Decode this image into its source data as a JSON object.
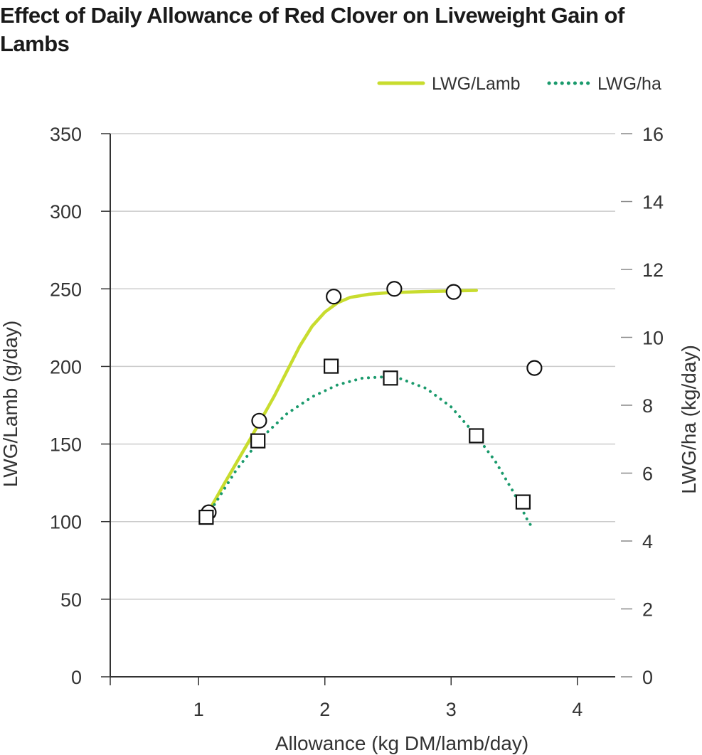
{
  "chart_data": {
    "type": "line",
    "title": "Effect of Daily Allowance of Red Clover on Liveweight Gain of Lambs",
    "xlabel": "Allowance (kg DM/lamb/day)",
    "ylabel_left": "LWG/Lamb (g/day)",
    "ylabel_right": "LWG/ha (kg/day)",
    "xlim": [
      0.3,
      4.3
    ],
    "ylim_left": [
      0,
      350
    ],
    "ylim_right": [
      0,
      16
    ],
    "x_ticks": [
      "1",
      "2",
      "3",
      "4"
    ],
    "y_ticks_left": [
      "0",
      "50",
      "100",
      "150",
      "200",
      "250",
      "300",
      "350"
    ],
    "y_ticks_right": [
      "0",
      "2",
      "4",
      "6",
      "8",
      "10",
      "12",
      "14",
      "16"
    ],
    "grid": "horizontal",
    "legend_position": "top-right",
    "colors": {
      "lwg_lamb": "#c8dc2e",
      "lwg_ha": "#1a9a6c",
      "grid": "#cccccc",
      "axis": "#333333"
    },
    "series": [
      {
        "name": "LWG/Lamb",
        "axis": "left",
        "style": "solid",
        "marker": "circle",
        "points": [
          [
            1.08,
            106
          ],
          [
            1.48,
            165
          ],
          [
            2.07,
            245
          ],
          [
            2.55,
            250
          ],
          [
            3.02,
            248
          ],
          [
            3.66,
            199
          ]
        ],
        "fit": [
          [
            1.04,
            101
          ],
          [
            1.2,
            124
          ],
          [
            1.4,
            152
          ],
          [
            1.6,
            181
          ],
          [
            1.8,
            213
          ],
          [
            1.9,
            226
          ],
          [
            2.0,
            235
          ],
          [
            2.1,
            241
          ],
          [
            2.2,
            244.5
          ],
          [
            2.35,
            246.5
          ],
          [
            2.5,
            247.5
          ],
          [
            2.8,
            248.3
          ],
          [
            3.2,
            249
          ]
        ]
      },
      {
        "name": "LWG/ha",
        "axis": "right",
        "style": "dotted",
        "marker": "square",
        "points": [
          [
            1.06,
            4.7
          ],
          [
            1.47,
            6.95
          ],
          [
            2.05,
            9.15
          ],
          [
            2.52,
            8.8
          ],
          [
            3.2,
            7.1
          ],
          [
            3.57,
            5.15
          ]
        ],
        "fit": [
          [
            1.07,
            4.75
          ],
          [
            1.3,
            6.1
          ],
          [
            1.5,
            7.05
          ],
          [
            1.7,
            7.75
          ],
          [
            1.9,
            8.25
          ],
          [
            2.1,
            8.6
          ],
          [
            2.3,
            8.8
          ],
          [
            2.45,
            8.83
          ],
          [
            2.6,
            8.78
          ],
          [
            2.8,
            8.5
          ],
          [
            3.0,
            7.95
          ],
          [
            3.2,
            7.1
          ],
          [
            3.35,
            6.35
          ],
          [
            3.5,
            5.4
          ],
          [
            3.6,
            4.65
          ],
          [
            3.65,
            4.35
          ]
        ]
      }
    ]
  }
}
